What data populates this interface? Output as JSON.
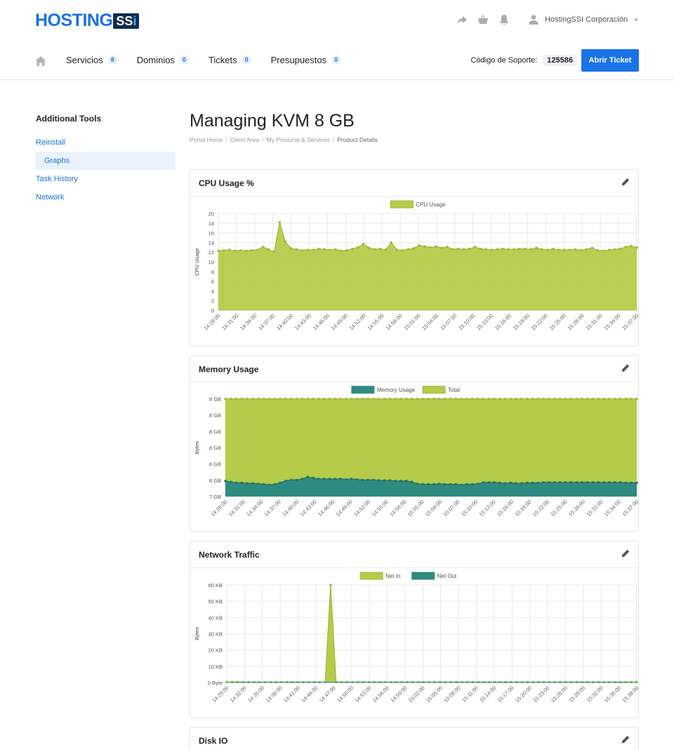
{
  "brand": {
    "logo_text": "HOSTING",
    "logo_badge": "SSi"
  },
  "top": {
    "icons": [
      "share-icon",
      "basket-icon",
      "bell-icon",
      "user-icon"
    ],
    "user_name": "HostingSSI Corporación"
  },
  "nav": {
    "items": [
      {
        "label": "Servicios",
        "badge": "8"
      },
      {
        "label": "Dominios",
        "badge": "0"
      },
      {
        "label": "Tickets",
        "badge": "0"
      },
      {
        "label": "Presupuestos",
        "badge": "0"
      }
    ],
    "support_label": "Código de Soporte:",
    "support_code": "125586",
    "ticket_button": "Abrir Ticket"
  },
  "sidebar": {
    "title": "Additional Tools",
    "items": [
      {
        "label": "Reinstall",
        "active": false
      },
      {
        "label": "Graphs",
        "active": true
      },
      {
        "label": "Task History",
        "active": false
      },
      {
        "label": "Network",
        "active": false
      }
    ]
  },
  "page": {
    "title": "Managing KVM 8 GB",
    "breadcrumb": [
      "Portal Home",
      "Client Area",
      "My Products & Services",
      "Product Details"
    ]
  },
  "colors": {
    "green": "#b5cc4a",
    "green_stroke": "#9db83a",
    "teal": "#2e8b80",
    "accent": "#1a73e8"
  },
  "chart_data": [
    {
      "type": "area",
      "title": "CPU Usage %",
      "ylabel": "CPU Usage",
      "ylim": [
        0,
        20
      ],
      "yticks": [
        "0",
        "2",
        "4",
        "6",
        "8",
        "10",
        "12",
        "14",
        "16",
        "18",
        "20"
      ],
      "xticks": [
        "14:28:00",
        "14:31:00",
        "14:34:00",
        "14:37:00",
        "14:40:00",
        "14:43:00",
        "14:46:00",
        "14:49:00",
        "14:52:00",
        "14:55:00",
        "14:58:00",
        "15:01:00",
        "15:04:00",
        "15:07:00",
        "15:10:00",
        "15:13:00",
        "15:16:00",
        "15:19:00",
        "15:22:00",
        "15:25:00",
        "15:28:00",
        "15:31:00",
        "15:34:00",
        "15:37:00"
      ],
      "legend": [
        "CPU Usage"
      ],
      "series": [
        {
          "name": "CPU Usage",
          "color": "#b5cc4a",
          "values": [
            12.3,
            12.4,
            12.5,
            12.3,
            12.4,
            12.3,
            12.4,
            12.5,
            13.1,
            12.6,
            12.1,
            18.2,
            14.2,
            12.8,
            12.6,
            12.4,
            12.5,
            12.5,
            12.7,
            12.6,
            12.5,
            12.6,
            12.3,
            12.4,
            12.7,
            13.0,
            13.7,
            12.9,
            12.6,
            12.7,
            12.5,
            14.0,
            12.5,
            12.4,
            12.6,
            12.8,
            13.4,
            13.2,
            13.0,
            13.2,
            12.9,
            13.1,
            12.6,
            12.7,
            12.6,
            12.7,
            13.1,
            12.7,
            12.6,
            12.5,
            12.6,
            12.7,
            12.6,
            12.6,
            12.7,
            12.7,
            12.6,
            12.9,
            12.6,
            12.5,
            12.7,
            12.5,
            12.5,
            12.5,
            12.6,
            12.4,
            12.6,
            12.9,
            12.4,
            12.3,
            12.5,
            12.6,
            12.7,
            13.1,
            13.3,
            13.0
          ]
        }
      ]
    },
    {
      "type": "area",
      "title": "Memory Usage",
      "ylabel": "Bytes",
      "yticks": [
        "7 GB",
        "8 GB",
        "8 GB",
        "8 GB",
        "8 GB",
        "8 GB",
        "9 GB"
      ],
      "xticks": [
        "14:28:00",
        "14:31:00",
        "14:34:00",
        "14:37:00",
        "14:40:00",
        "14:43:00",
        "14:46:00",
        "14:49:00",
        "14:52:00",
        "14:55:00",
        "14:58:00",
        "15:01:00",
        "15:04:00",
        "15:07:00",
        "15:10:00",
        "15:13:00",
        "15:16:00",
        "15:19:00",
        "15:22:00",
        "15:25:00",
        "15:28:00",
        "15:31:00",
        "15:34:00",
        "15:37:00"
      ],
      "legend": [
        "Memory Usage",
        "Total"
      ],
      "series": [
        {
          "name": "Total",
          "color": "#b5cc4a",
          "values_fraction": [
            1.0
          ]
        },
        {
          "name": "Memory Usage",
          "color": "#2e8b80",
          "values_fraction": [
            0.16,
            0.15,
            0.14,
            0.14,
            0.135,
            0.135,
            0.13,
            0.125,
            0.12,
            0.125,
            0.14,
            0.16,
            0.17,
            0.17,
            0.18,
            0.2,
            0.19,
            0.18,
            0.18,
            0.18,
            0.18,
            0.18,
            0.175,
            0.18,
            0.175,
            0.17,
            0.17,
            0.17,
            0.165,
            0.165,
            0.165,
            0.16,
            0.16,
            0.16,
            0.15,
            0.13,
            0.125,
            0.125,
            0.125,
            0.13,
            0.125,
            0.125,
            0.125,
            0.12,
            0.125,
            0.125,
            0.13,
            0.145,
            0.145,
            0.145,
            0.14,
            0.135,
            0.14,
            0.135,
            0.135,
            0.14,
            0.14,
            0.14,
            0.145,
            0.145,
            0.145,
            0.145,
            0.145,
            0.145,
            0.145,
            0.145,
            0.145,
            0.145,
            0.145,
            0.145,
            0.145,
            0.145,
            0.145,
            0.14,
            0.14,
            0.14
          ]
        }
      ]
    },
    {
      "type": "area",
      "title": "Network Traffic",
      "ylabel": "Bytes",
      "yticks": [
        "0 Byte",
        "10 KB",
        "20 KB",
        "30 KB",
        "40 KB",
        "50 KB",
        "60 KB"
      ],
      "ylim": [
        0,
        60
      ],
      "xticks": [
        "14:29:00",
        "14:32:00",
        "14:35:00",
        "14:38:00",
        "14:41:00",
        "14:44:00",
        "14:47:00",
        "14:50:00",
        "14:53:00",
        "14:56:00",
        "14:59:00",
        "15:02:00",
        "15:05:00",
        "15:08:00",
        "15:11:00",
        "15:14:00",
        "15:17:00",
        "15:20:00",
        "15:23:00",
        "15:26:00",
        "15:29:00",
        "15:32:00",
        "15:35:00",
        "15:38:00"
      ],
      "legend": [
        "Net In",
        "Net Out"
      ],
      "series": [
        {
          "name": "Net In",
          "color": "#b5cc4a",
          "spike_kb": 60,
          "values": [
            0.3,
            0.3,
            0.3,
            0.3,
            0.3,
            0.3,
            0.3,
            0.3,
            0.3,
            0.3,
            0.3,
            0.3,
            0.3,
            0.3,
            0.3,
            0.3,
            0.3,
            0.3,
            0.3,
            60,
            0.3,
            0.3,
            0.3,
            0.3,
            0.3,
            0.3,
            0.3,
            0.3,
            0.3,
            0.3,
            0.3,
            0.3,
            0.3,
            0.3,
            0.3,
            0.3,
            0.3,
            0.3,
            0.3,
            0.3,
            0.3,
            0.3,
            0.3,
            0.3,
            0.3,
            0.3,
            0.3,
            0.3,
            0.3,
            0.3,
            0.3,
            0.3,
            0.3,
            0.3,
            0.3,
            0.3,
            0.3,
            0.3,
            0.3,
            0.3,
            0.3,
            0.3,
            0.3,
            0.3,
            0.3,
            0.3,
            0.3,
            0.3,
            0.3,
            0.3,
            0.3,
            0.3,
            0.3,
            0.3,
            0.3,
            0.3
          ]
        },
        {
          "name": "Net Out",
          "color": "#2e8b80",
          "values": [
            0.2,
            0.2,
            0.2,
            0.2,
            0.2,
            0.2,
            0.2,
            0.2,
            0.2,
            0.2,
            0.2,
            0.2,
            0.2,
            0.2,
            0.2,
            0.2,
            0.2,
            0.2,
            0.2,
            0.2,
            0.2,
            0.2,
            0.2,
            0.2,
            0.2,
            0.2,
            0.2,
            0.2,
            0.2,
            0.2,
            0.2,
            0.2,
            0.2,
            0.2,
            0.2,
            0.2,
            0.2,
            0.2,
            0.2,
            0.2,
            0.2,
            0.2,
            0.2,
            0.2,
            0.2,
            0.2,
            0.2,
            0.2,
            0.2,
            0.2,
            0.2,
            0.2,
            0.2,
            0.2,
            0.2,
            0.2,
            0.2,
            0.2,
            0.2,
            0.2,
            0.2,
            0.2,
            0.2,
            0.2,
            0.2,
            0.2,
            0.2,
            0.2,
            0.2,
            0.2,
            0.2,
            0.2,
            0.2,
            0.2,
            0.2,
            0.2
          ]
        }
      ]
    },
    {
      "type": "area",
      "title": "Disk IO"
    }
  ]
}
